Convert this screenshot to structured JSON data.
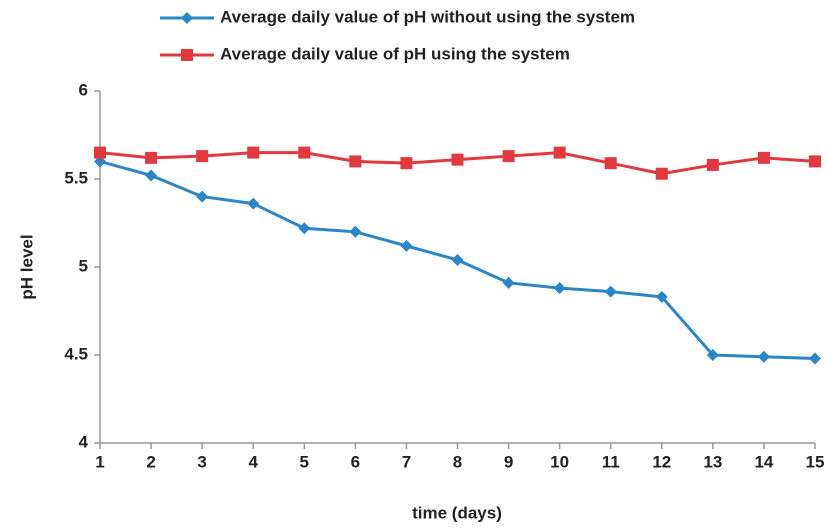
{
  "chart_data": {
    "type": "line",
    "x": [
      1,
      2,
      3,
      4,
      5,
      6,
      7,
      8,
      9,
      10,
      11,
      12,
      13,
      14,
      15
    ],
    "xlim": [
      1,
      15
    ],
    "xticks": [
      1,
      2,
      3,
      4,
      5,
      6,
      7,
      8,
      9,
      10,
      11,
      12,
      13,
      14,
      15
    ],
    "ylim": [
      4,
      6
    ],
    "yticks": [
      4,
      4.5,
      5,
      5.5,
      6
    ],
    "x_label": "time (days)",
    "y_label": "pH level",
    "grid": false,
    "series": [
      {
        "name": "Average daily value of pH without using the system",
        "color": "#2a86c6",
        "marker": "diamond",
        "values": [
          5.6,
          5.52,
          5.4,
          5.36,
          5.22,
          5.2,
          5.12,
          5.04,
          4.91,
          4.88,
          4.86,
          4.83,
          4.5,
          4.49,
          4.48
        ]
      },
      {
        "name": "Average daily value of pH using the system",
        "color": "#e2393f",
        "marker": "square",
        "values": [
          5.65,
          5.62,
          5.63,
          5.65,
          5.65,
          5.6,
          5.59,
          5.61,
          5.63,
          5.65,
          5.59,
          5.53,
          5.58,
          5.62,
          5.6
        ]
      }
    ]
  }
}
